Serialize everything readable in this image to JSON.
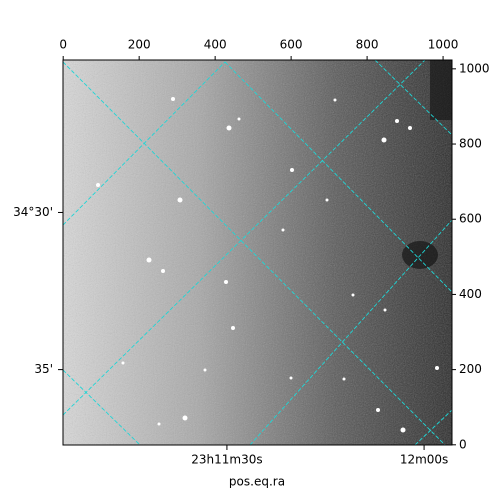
{
  "chart_data": {
    "type": "image",
    "xlabel": "pos.eq.ra",
    "xlim": [
      -0.5,
      1023.5
    ],
    "ylim": [
      -0.5,
      1023.5
    ],
    "xticks": [
      0,
      200,
      400,
      600,
      800,
      1000
    ],
    "yticks": [
      0,
      200,
      400,
      600,
      800,
      1000
    ],
    "ra_ticks": [
      {
        "value": 431,
        "label": "23h11m30s"
      },
      {
        "value": 950,
        "label": "12m00s"
      }
    ],
    "dec_ticks": [
      {
        "value": 618,
        "label": "34°30'"
      },
      {
        "value": 200,
        "label": "35'"
      }
    ],
    "grid": true
  }
}
